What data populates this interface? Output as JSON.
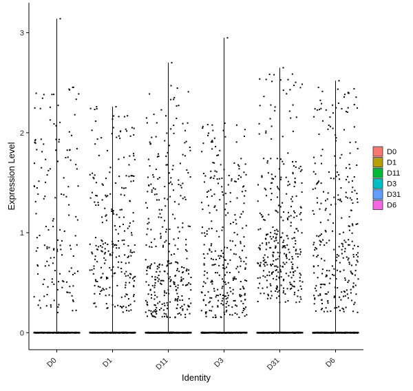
{
  "chart_data": {
    "type": "scatter",
    "subtype": "violin-jitter",
    "title": "",
    "xlabel": "Identity",
    "ylabel": "Expression Level",
    "categories": [
      "D0",
      "D1",
      "D11",
      "D3",
      "D31",
      "D6"
    ],
    "ylim": [
      -0.17,
      3.3
    ],
    "yticks": [
      0,
      1,
      2,
      3
    ],
    "grid": false,
    "legend_position": "right",
    "legend": [
      {
        "label": "D0",
        "color": "#F8766D"
      },
      {
        "label": "D1",
        "color": "#B79F00"
      },
      {
        "label": "D11",
        "color": "#00BA38"
      },
      {
        "label": "D3",
        "color": "#00BFC4"
      },
      {
        "label": "D31",
        "color": "#619CFF"
      },
      {
        "label": "D6",
        "color": "#F564E3"
      }
    ],
    "series": [
      {
        "category": "D0",
        "max": 3.14,
        "points_nonzero": 150,
        "points_zero": 500,
        "bands": [
          [
            0.2,
            0.9,
            0.45
          ],
          [
            0.9,
            1.8,
            0.3
          ],
          [
            1.8,
            2.5,
            0.25
          ]
        ]
      },
      {
        "category": "D1",
        "max": 2.26,
        "points_nonzero": 250,
        "points_zero": 500,
        "bands": [
          [
            0.2,
            0.9,
            0.55
          ],
          [
            0.9,
            1.6,
            0.3
          ],
          [
            1.6,
            2.26,
            0.15
          ]
        ]
      },
      {
        "category": "D11",
        "max": 2.7,
        "points_nonzero": 330,
        "points_zero": 500,
        "bands": [
          [
            0.15,
            0.7,
            0.55
          ],
          [
            0.7,
            1.6,
            0.3
          ],
          [
            1.6,
            2.5,
            0.15
          ]
        ]
      },
      {
        "category": "D3",
        "max": 2.95,
        "points_nonzero": 300,
        "points_zero": 500,
        "bands": [
          [
            0.15,
            0.8,
            0.55
          ],
          [
            0.8,
            1.6,
            0.32
          ],
          [
            1.6,
            2.1,
            0.13
          ]
        ]
      },
      {
        "category": "D31",
        "max": 2.65,
        "points_nonzero": 340,
        "points_zero": 500,
        "bands": [
          [
            0.3,
            1.0,
            0.6
          ],
          [
            1.0,
            1.75,
            0.3
          ],
          [
            1.75,
            2.6,
            0.1
          ]
        ]
      },
      {
        "category": "D6",
        "max": 2.52,
        "points_nonzero": 290,
        "points_zero": 500,
        "bands": [
          [
            0.2,
            0.9,
            0.5
          ],
          [
            0.9,
            1.8,
            0.35
          ],
          [
            1.8,
            2.5,
            0.15
          ]
        ]
      }
    ]
  }
}
